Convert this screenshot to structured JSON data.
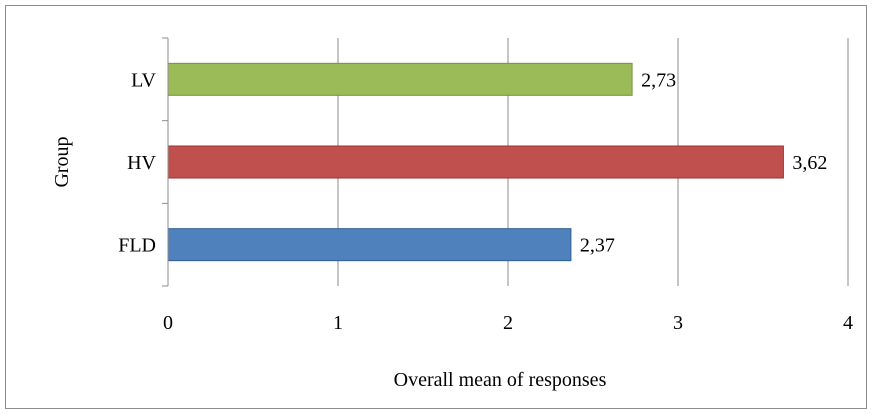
{
  "chart_data": {
    "type": "bar",
    "orientation": "horizontal",
    "categories": [
      "FLD",
      "HV",
      "LV"
    ],
    "values": [
      2.37,
      3.62,
      2.73
    ],
    "value_labels": [
      "2,37",
      "3,62",
      "2,73"
    ],
    "colors": [
      "#4f81bd",
      "#c0504d",
      "#9bbb59"
    ],
    "edge_colors": [
      "#2f5e94",
      "#9a3330",
      "#76923c"
    ],
    "title": "",
    "xlabel": "Overall mean of responses",
    "ylabel": "Group",
    "xlim": [
      0,
      4
    ],
    "xticks": [
      0,
      1,
      2,
      3,
      4
    ],
    "grid": true,
    "legend": "none"
  }
}
